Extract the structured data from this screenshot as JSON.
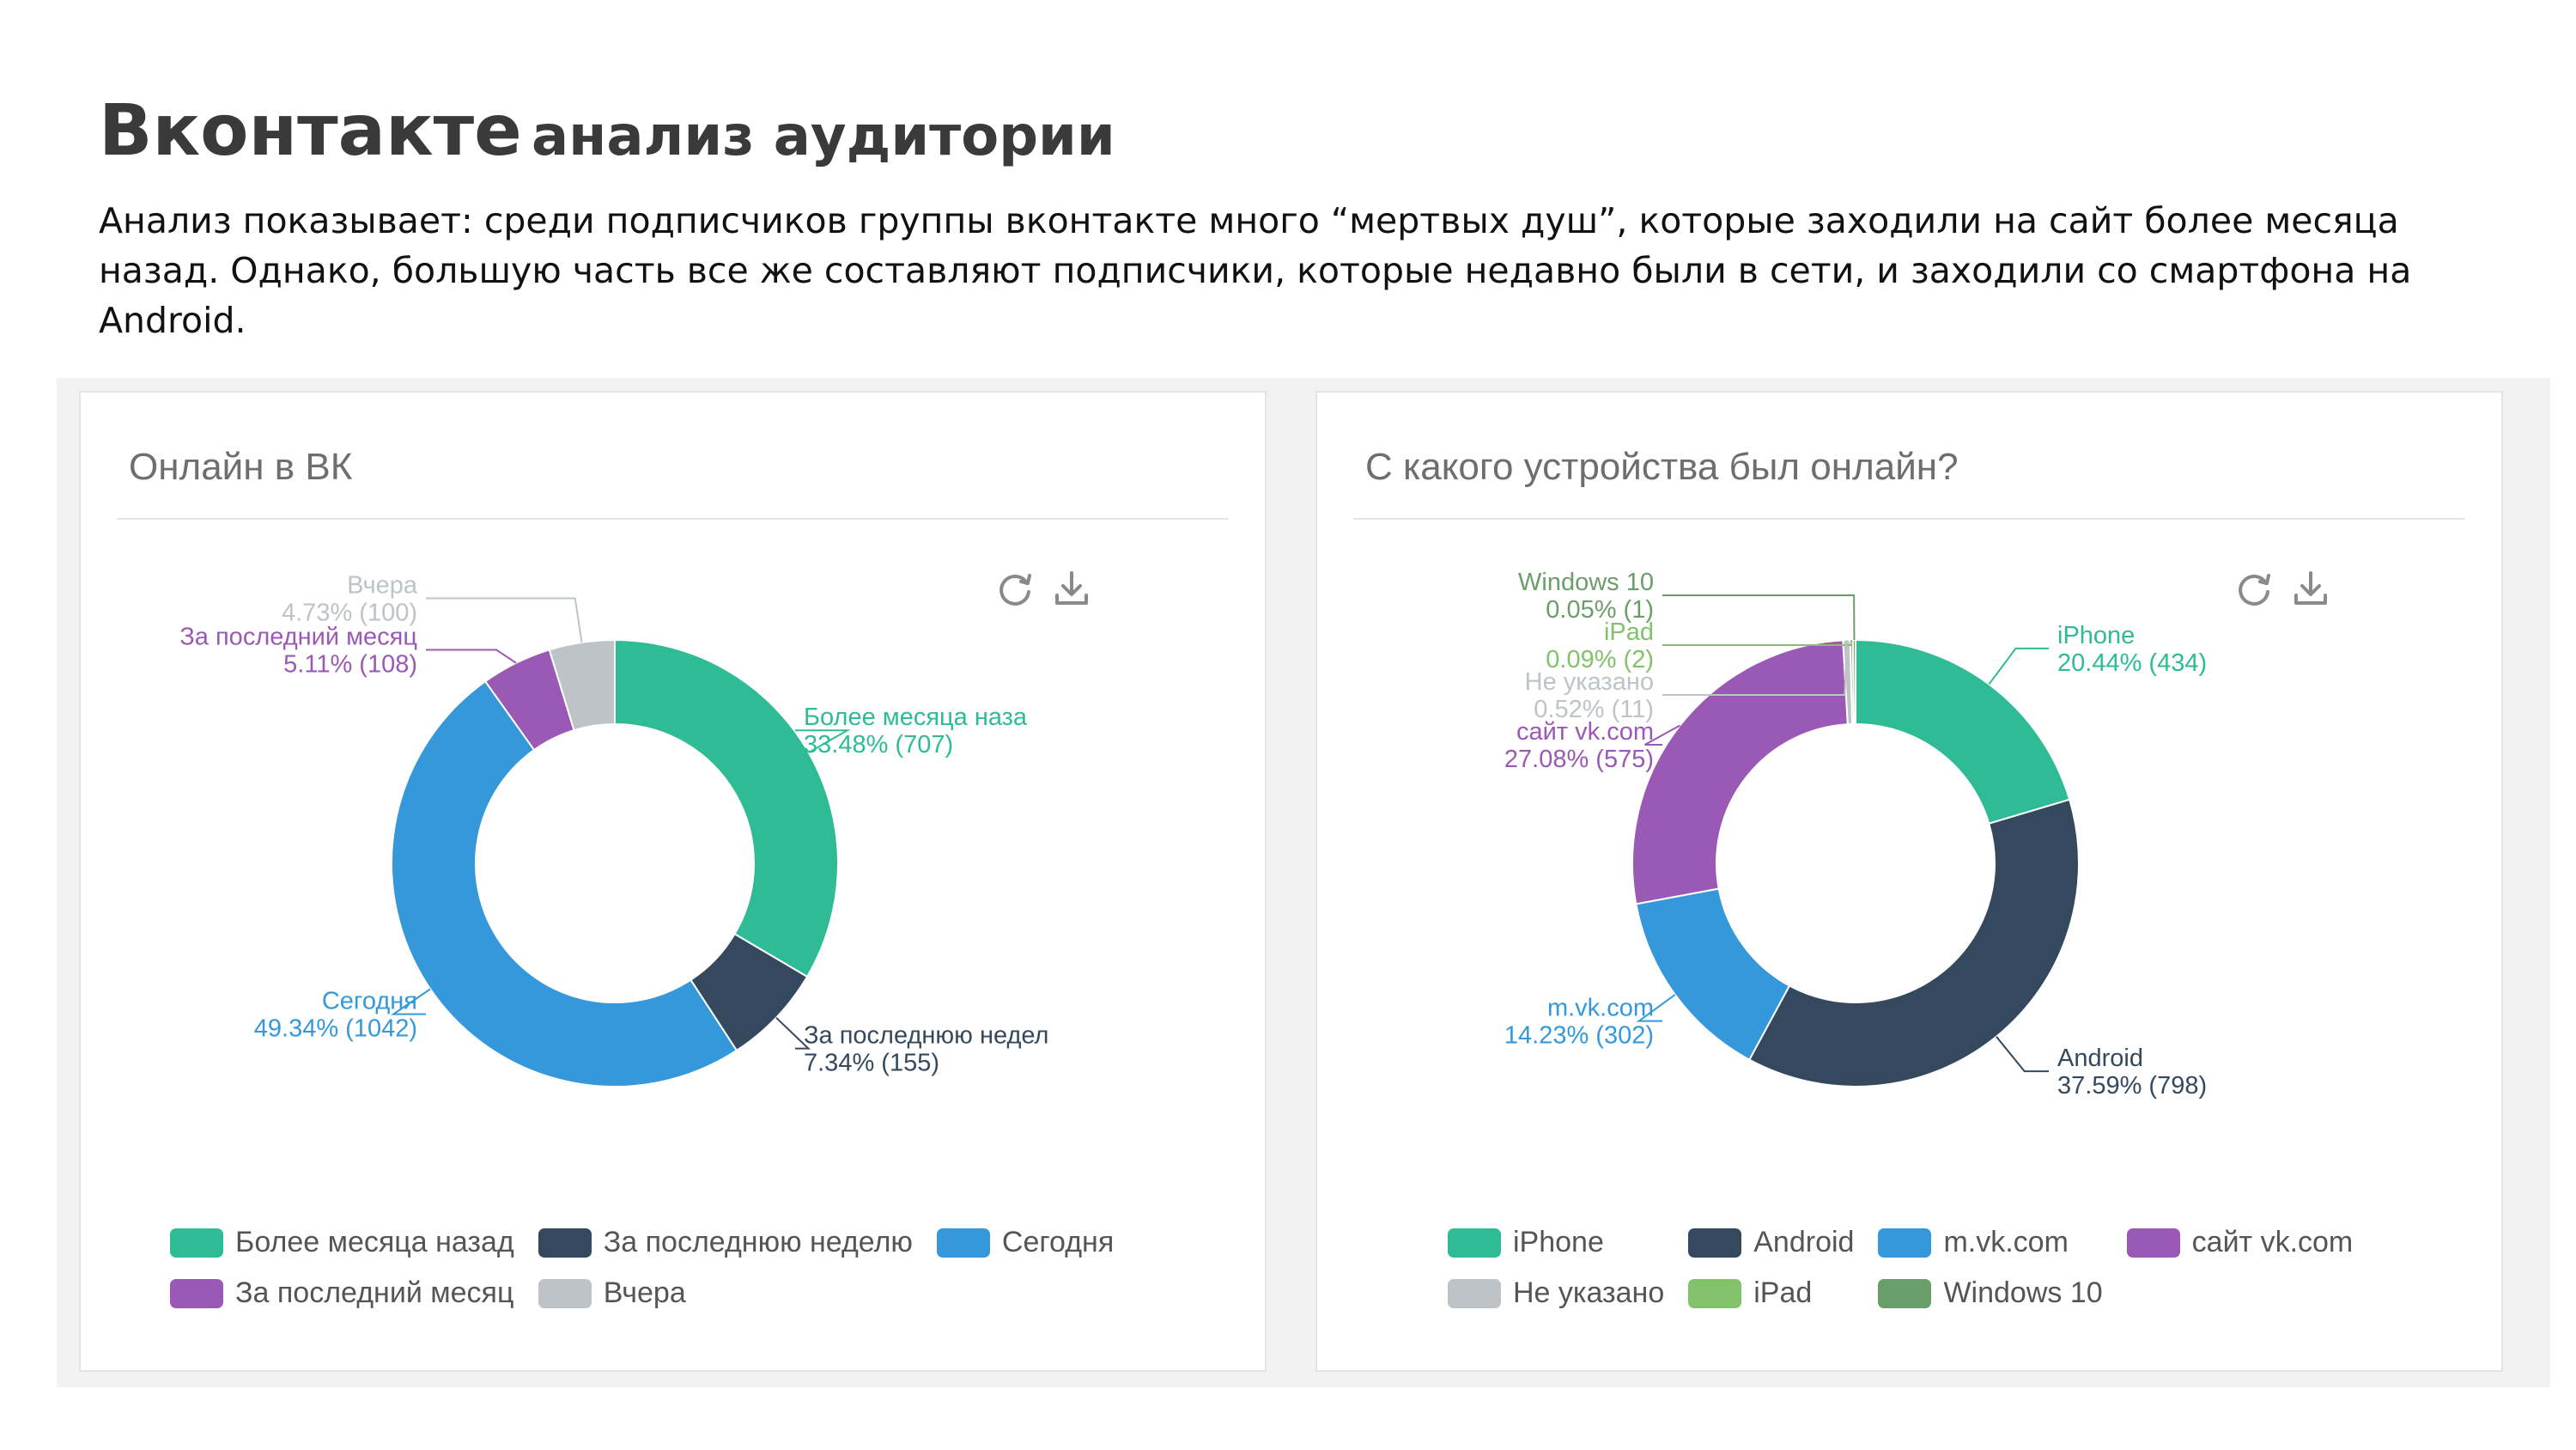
{
  "page": {
    "title_brand": "Вконтакте",
    "title_rest": "анализ аудитории",
    "description": "Анализ показывает: среди подписчиков группы вконтакте много “мертвых душ”, которые заходили на сайт более месяца назад. Однако, большую часть все же составляют подписчики, которые недавно были в сети, и заходили со смартфона на Android."
  },
  "toolbar_icons": [
    "refresh-icon",
    "download-icon"
  ],
  "chart_data": [
    {
      "type": "pie",
      "donut": true,
      "title": "Онлайн в ВК",
      "legend_position": "bottom",
      "slices": [
        {
          "label": "Более месяца назад",
          "chart_label": "Более месяца наза",
          "percent": "33.48%",
          "count": "(707)",
          "value": 707,
          "color": "#2ebb95"
        },
        {
          "label": "За последнюю неделю",
          "chart_label": "За последнюю недел",
          "percent": "7.34%",
          "count": "(155)",
          "value": 155,
          "color": "#34495e"
        },
        {
          "label": "Сегодня",
          "chart_label": "Сегодня",
          "percent": "49.34%",
          "count": "(1042)",
          "value": 1042,
          "color": "#3498db"
        },
        {
          "label": "За последний месяц",
          "chart_label": "За последний месяц",
          "percent": "5.11%",
          "count": "(108)",
          "value": 108,
          "color": "#9b59b6"
        },
        {
          "label": "Вчера",
          "chart_label": "Вчера",
          "percent": "4.73%",
          "count": "(100)",
          "value": 100,
          "color": "#bdc3c7"
        }
      ]
    },
    {
      "type": "pie",
      "donut": true,
      "title": "С какого устройства был онлайн?",
      "legend_position": "bottom",
      "slices": [
        {
          "label": "iPhone",
          "chart_label": "iPhone",
          "percent": "20.44%",
          "count": "(434)",
          "value": 434,
          "color": "#2ebb95"
        },
        {
          "label": "Android",
          "chart_label": "Android",
          "percent": "37.59%",
          "count": "(798)",
          "value": 798,
          "color": "#34495e"
        },
        {
          "label": "m.vk.com",
          "chart_label": "m.vk.com",
          "percent": "14.23%",
          "count": "(302)",
          "value": 302,
          "color": "#3498db"
        },
        {
          "label": "сайт vk.com",
          "chart_label": "сайт vk.com",
          "percent": "27.08%",
          "count": "(575)",
          "value": 575,
          "color": "#9b59b6"
        },
        {
          "label": "Не указано",
          "chart_label": "Не указано",
          "percent": "0.52%",
          "count": "(11)",
          "value": 11,
          "color": "#bdc3c7"
        },
        {
          "label": "iPad",
          "chart_label": "iPad",
          "percent": "0.09%",
          "count": "(2)",
          "value": 2,
          "color": "#82c26a"
        },
        {
          "label": "Windows 10",
          "chart_label": "Windows 10",
          "percent": "0.05%",
          "count": "(1)",
          "value": 1,
          "color": "#6a9e6a"
        }
      ]
    }
  ]
}
